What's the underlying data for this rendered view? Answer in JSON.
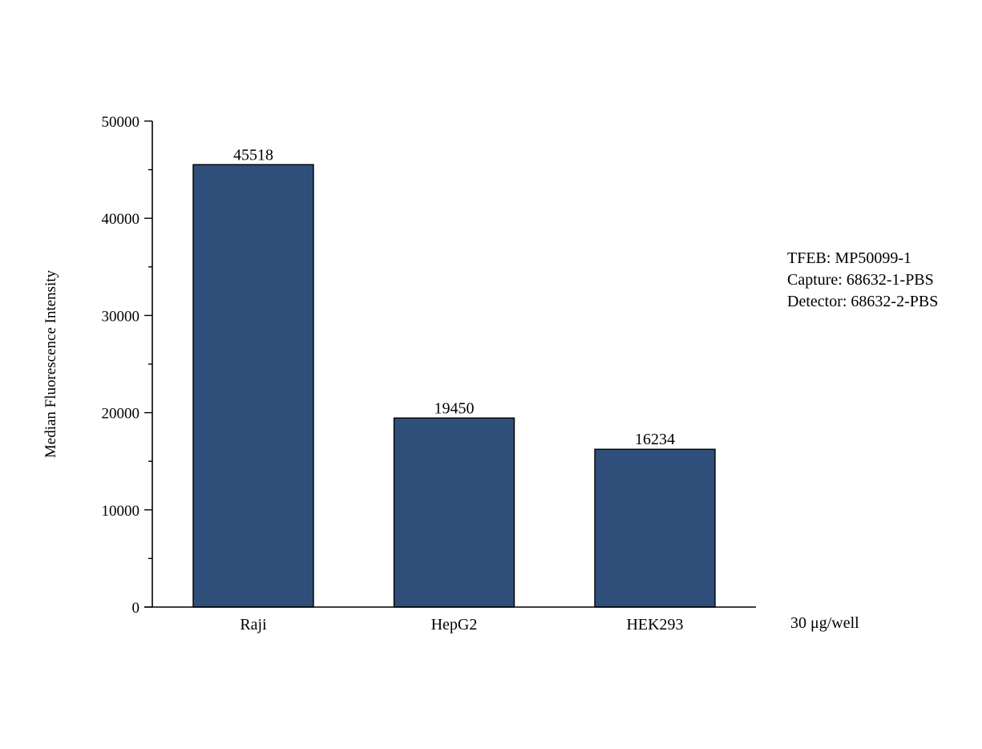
{
  "chart_data": {
    "type": "bar",
    "title": "",
    "xlabel": "",
    "ylabel": "Median Fluorescence Intensity",
    "categories": [
      "Raji",
      "HepG2",
      "HEK293"
    ],
    "values": [
      45518,
      19450,
      16234
    ],
    "value_labels": [
      "45518",
      "19450",
      "16234"
    ],
    "ylim": [
      0,
      50000
    ],
    "y_major_ticks": [
      0,
      10000,
      20000,
      30000,
      40000,
      50000
    ],
    "y_tick_labels": [
      "0",
      "10000",
      "20000",
      "30000",
      "40000",
      "50000"
    ],
    "y_minor_ticks": [
      5000,
      15000,
      25000,
      35000,
      45000
    ],
    "grid": false,
    "bar_color": "#2f4f7a",
    "annotations": [
      "TFEB: MP50099-1",
      "Capture: 68632-1-PBS",
      "Detector: 68632-2-PBS"
    ],
    "note": "30 μg/well"
  }
}
